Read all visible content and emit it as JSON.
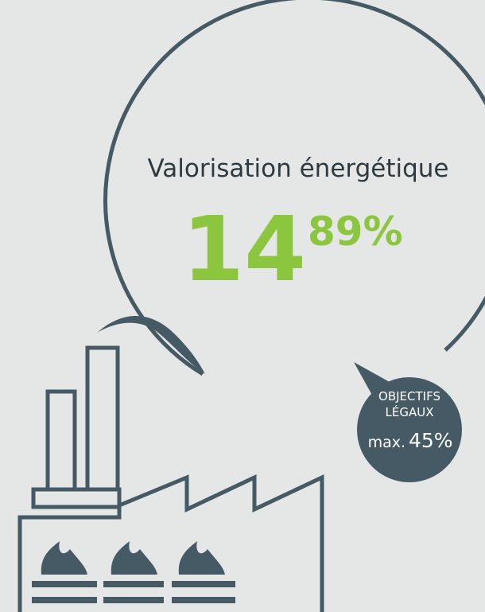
{
  "bubble": {
    "label": "Valorisation énergétique",
    "value_whole": "14",
    "value_fraction": "89%"
  },
  "badge": {
    "line1": "OBJECTIFS",
    "line2": "LÉGAUX",
    "prefix": "max.",
    "value": "45%"
  }
}
